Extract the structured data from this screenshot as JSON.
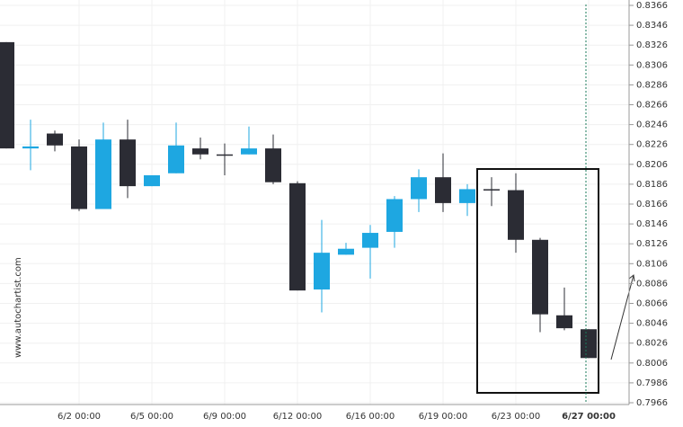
{
  "chart_data": {
    "type": "candlestick",
    "source": "www.autochartist.com",
    "categories": [
      null,
      null,
      null,
      "6/2 00:00",
      null,
      null,
      "6/5 00:00",
      null,
      null,
      "6/9 00:00",
      null,
      null,
      "6/12 00:00",
      null,
      null,
      "6/16 00:00",
      null,
      null,
      "6/19 00:00",
      null,
      null,
      "6/23 00:00",
      null,
      null,
      "6/27 00:00"
    ],
    "open": [
      0.8329,
      0.8222,
      0.8237,
      0.8224,
      0.8161,
      0.8231,
      0.8184,
      0.8197,
      0.8222,
      0.8216,
      0.8216,
      0.8222,
      0.8187,
      0.808,
      0.8115,
      0.8122,
      0.8138,
      0.8171,
      0.8193,
      0.8167,
      0.8181,
      0.818,
      0.813,
      0.8054,
      0.804
    ],
    "high": [
      0.8329,
      0.8251,
      0.824,
      0.8231,
      0.8248,
      0.8251,
      0.8195,
      0.8248,
      0.8233,
      0.8227,
      0.8244,
      0.8236,
      0.8189,
      0.815,
      0.8127,
      0.8145,
      0.8174,
      0.8201,
      0.8217,
      0.8186,
      0.8193,
      0.8197,
      0.8132,
      0.8082,
      0.804
    ],
    "low": [
      0.8222,
      0.82,
      0.8219,
      0.8159,
      0.8161,
      0.8172,
      0.8184,
      0.8197,
      0.8211,
      0.8195,
      0.8216,
      0.8186,
      0.8079,
      0.8057,
      0.8115,
      0.8091,
      0.8122,
      0.8158,
      0.8158,
      0.8154,
      0.8164,
      0.8117,
      0.8037,
      0.8039,
      0.8011
    ],
    "close": [
      0.8222,
      0.8224,
      0.8225,
      0.8161,
      0.8231,
      0.8184,
      0.8195,
      0.8225,
      0.8216,
      0.8215,
      0.8222,
      0.8188,
      0.8079,
      0.8117,
      0.8121,
      0.8137,
      0.8171,
      0.8193,
      0.8167,
      0.8181,
      0.818,
      0.813,
      0.8055,
      0.8041,
      0.8011
    ],
    "up_color": "#1ea7e1",
    "down_color": "#2b2c34",
    "ylim": [
      0.7966,
      0.8366
    ],
    "yticks": [
      0.7966,
      0.7986,
      0.8006,
      0.8026,
      0.8046,
      0.8066,
      0.8086,
      0.8106,
      0.8126,
      0.8146,
      0.8166,
      0.8186,
      0.8206,
      0.8226,
      0.8246,
      0.8266,
      0.8286,
      0.8306,
      0.8326,
      0.8346,
      0.8366
    ],
    "grid": true
  }
}
